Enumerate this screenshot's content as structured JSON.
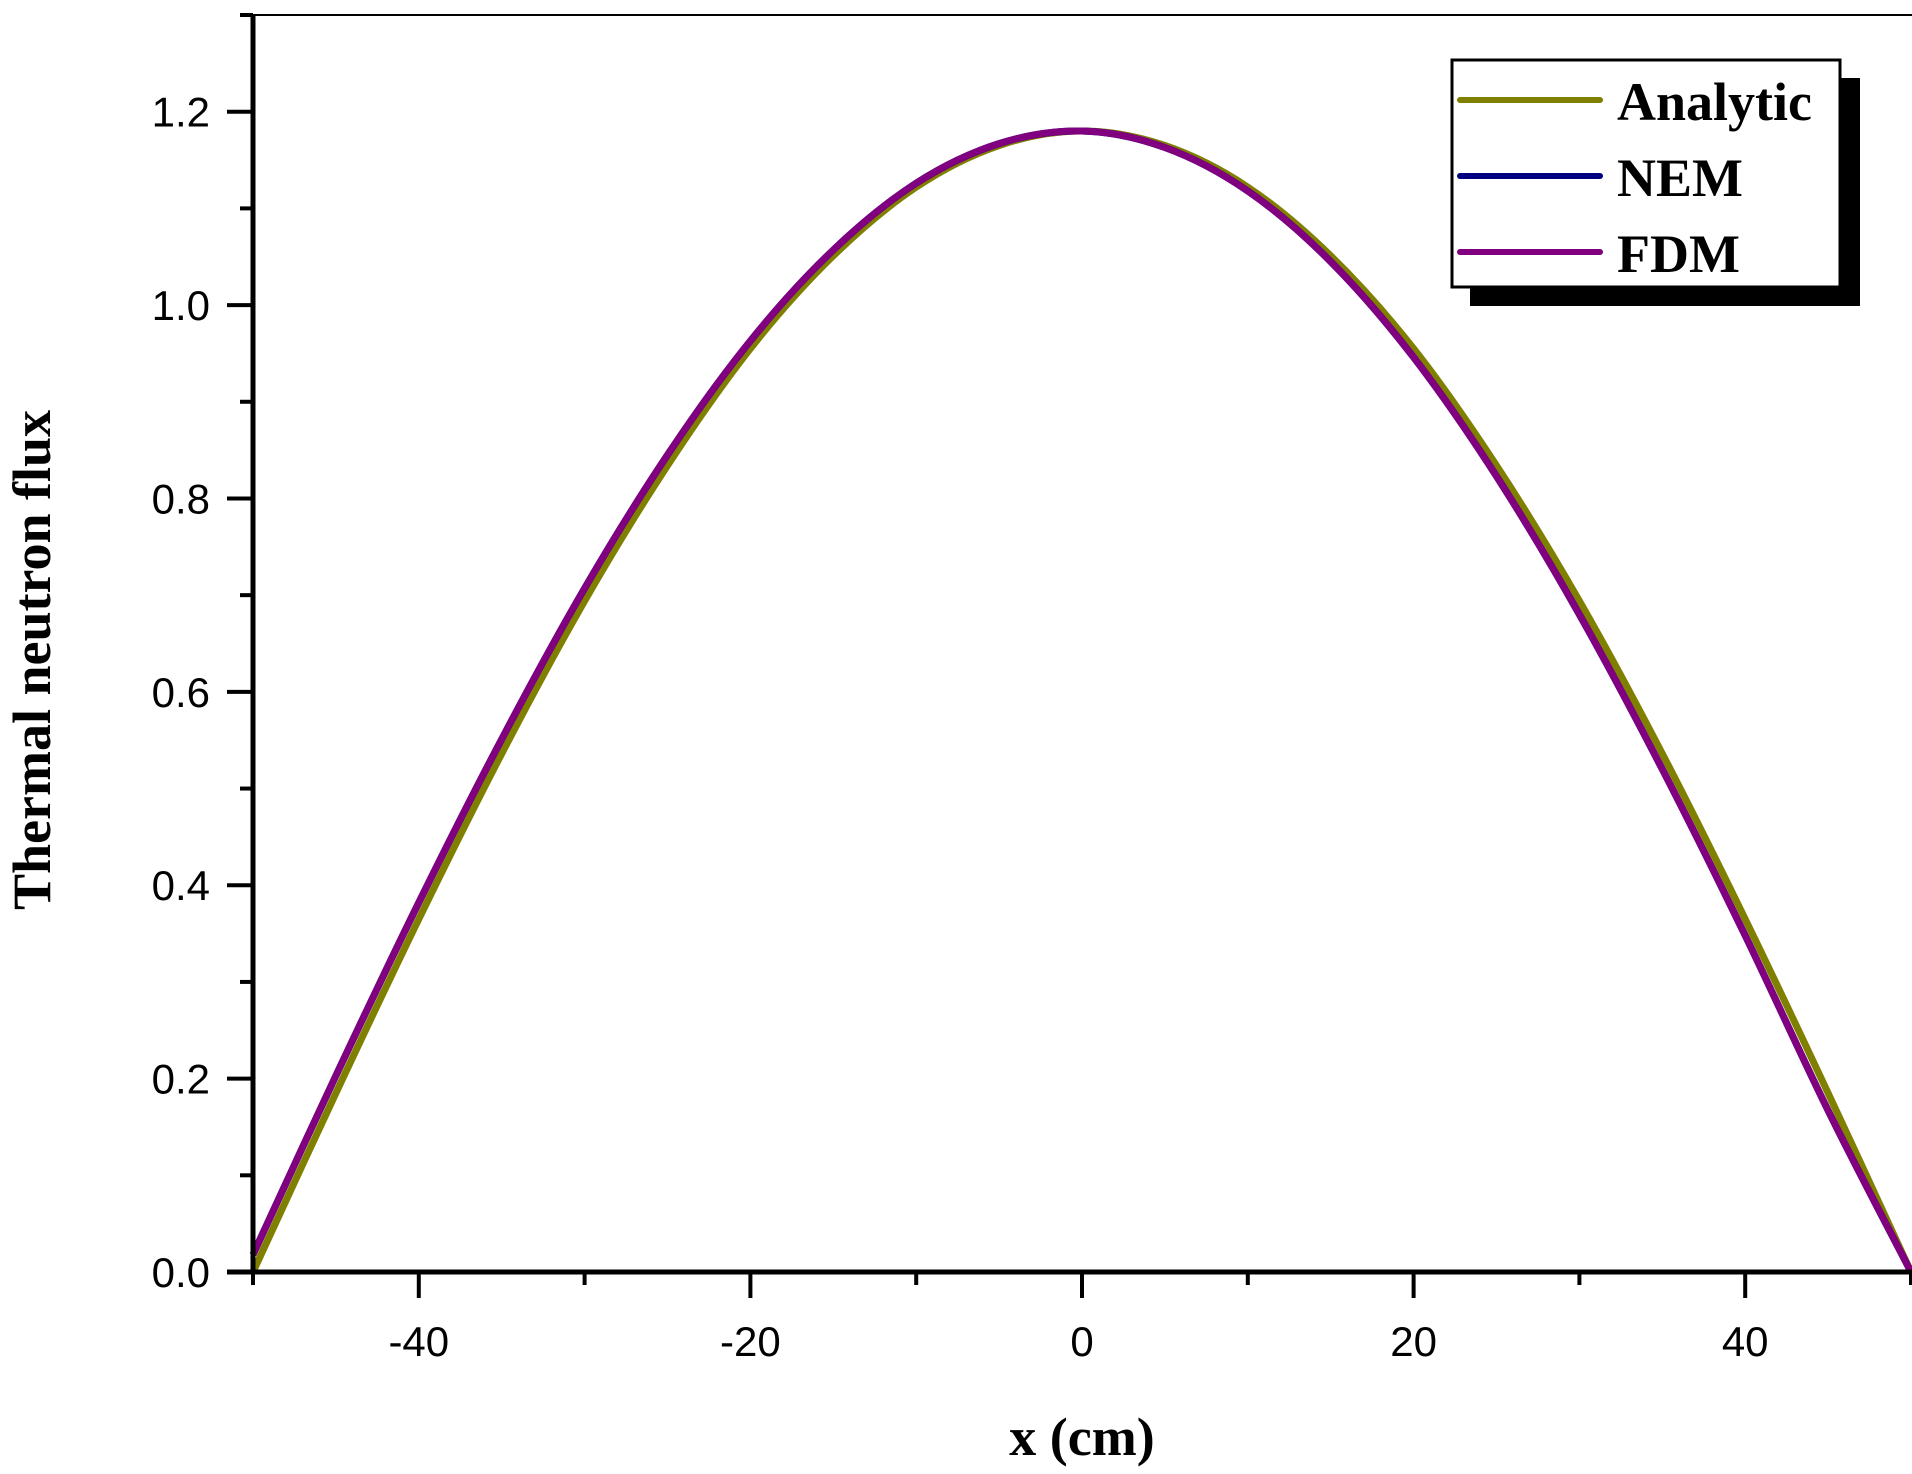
{
  "chart_data": {
    "type": "line",
    "title": "",
    "xlabel": "x (cm)",
    "ylabel": "Thermal neutron flux",
    "xlim": [
      -50,
      50
    ],
    "ylim": [
      0.0,
      1.3
    ],
    "xticks": [
      -40,
      -20,
      0,
      20,
      40
    ],
    "xtick_labels": [
      "-40",
      "-20",
      "0",
      "20",
      "40"
    ],
    "xminor_ticks": [
      -50,
      -30,
      -10,
      10,
      30,
      50
    ],
    "yticks": [
      0.0,
      0.2,
      0.4,
      0.6,
      0.8,
      1.0,
      1.2
    ],
    "ytick_labels": [
      "0.0",
      "0.2",
      "0.4",
      "0.6",
      "0.8",
      "1.0",
      "1.2"
    ],
    "yminor_ticks": [
      0.1,
      0.3,
      0.5,
      0.7,
      0.9,
      1.1,
      1.3
    ],
    "grid": false,
    "legend_position": "upper right",
    "x": [
      -50,
      -45,
      -40,
      -35,
      -30,
      -25,
      -20,
      -15,
      -10,
      -5,
      0,
      5,
      10,
      15,
      20,
      25,
      30,
      35,
      40,
      45,
      50
    ],
    "series": [
      {
        "name": "Analytic",
        "color": "#808000",
        "values": [
          0.0,
          0.185,
          0.365,
          0.536,
          0.694,
          0.834,
          0.955,
          1.051,
          1.122,
          1.165,
          1.18,
          1.165,
          1.122,
          1.051,
          0.955,
          0.834,
          0.694,
          0.536,
          0.365,
          0.185,
          0.0
        ]
      },
      {
        "name": "NEM",
        "color": "#000080",
        "values": [
          0.018,
          0.203,
          0.382,
          0.551,
          0.707,
          0.845,
          0.963,
          1.057,
          1.126,
          1.167,
          1.18,
          1.163,
          1.118,
          1.045,
          0.946,
          0.823,
          0.68,
          0.52,
          0.348,
          0.167,
          0.0
        ]
      },
      {
        "name": "FDM",
        "color": "#800080",
        "values": [
          0.018,
          0.203,
          0.382,
          0.551,
          0.707,
          0.845,
          0.963,
          1.057,
          1.126,
          1.167,
          1.18,
          1.163,
          1.118,
          1.045,
          0.946,
          0.823,
          0.68,
          0.52,
          0.348,
          0.167,
          0.0
        ]
      }
    ]
  },
  "legend": {
    "items": [
      {
        "label": "Analytic",
        "color": "#808000"
      },
      {
        "label": "NEM",
        "color": "#000080"
      },
      {
        "label": "FDM",
        "color": "#800080"
      }
    ]
  }
}
